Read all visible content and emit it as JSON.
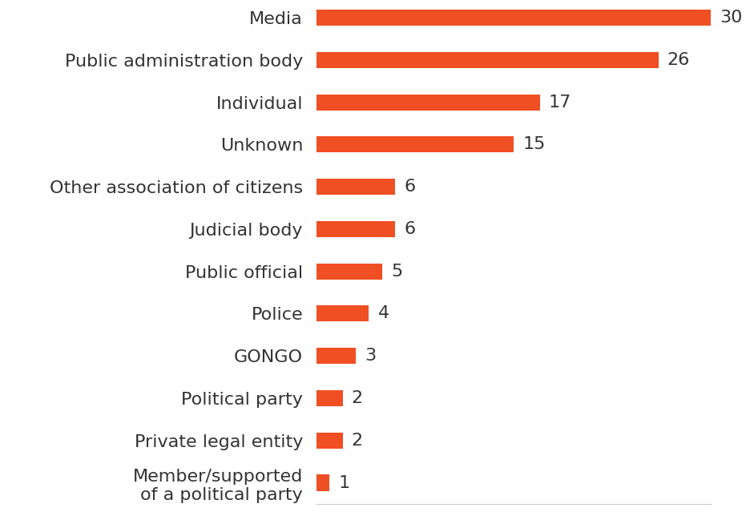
{
  "chart_data": {
    "type": "bar",
    "orientation": "horizontal",
    "categories": [
      "Media",
      "Public administration body",
      "Individual",
      "Unknown",
      "Other association of citizens",
      "Judicial body",
      "Public official",
      "Police",
      "GONGO",
      "Political party",
      "Private legal entity",
      "Member/supported\nof a political party"
    ],
    "values": [
      30,
      26,
      17,
      15,
      6,
      6,
      5,
      4,
      3,
      2,
      2,
      1
    ],
    "color": "#f04e23",
    "xlim": [
      0,
      30
    ],
    "xticks": [],
    "grid": false,
    "data_labels": true,
    "tick_labels": "y"
  }
}
